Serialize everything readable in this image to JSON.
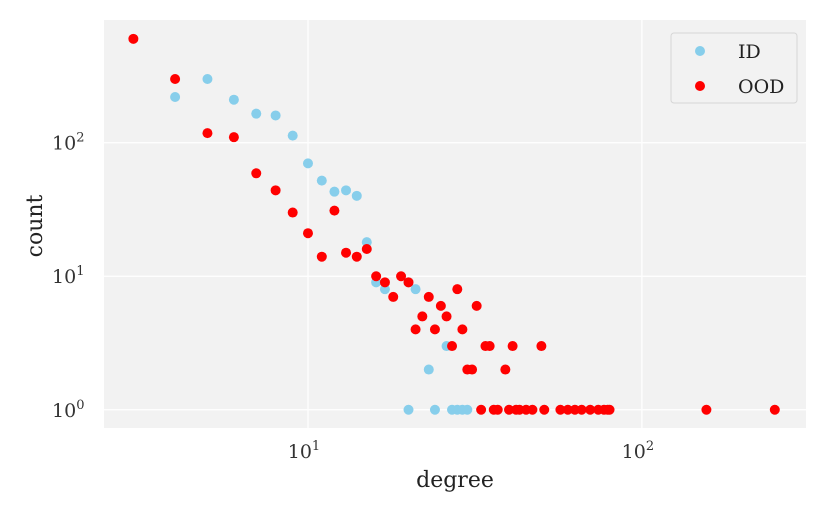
{
  "chart_data": {
    "type": "scatter",
    "xlabel": "degree",
    "ylabel": "count",
    "xscale": "log",
    "yscale": "log",
    "xlim": [
      2.45,
      310
    ],
    "ylim": [
      0.73,
      830
    ],
    "xticks": [
      {
        "value": 10,
        "base": "10",
        "exp": "1"
      },
      {
        "value": 100,
        "base": "10",
        "exp": "2"
      }
    ],
    "yticks": [
      {
        "value": 1,
        "base": "10",
        "exp": "0"
      },
      {
        "value": 10,
        "base": "10",
        "exp": "1"
      },
      {
        "value": 100,
        "base": "10",
        "exp": "2"
      }
    ],
    "grid": true,
    "legend_position": "top-right",
    "colors": {
      "ID": "#87ceeb",
      "OOD": "#ff0000",
      "background": "#f2f2f2",
      "grid": "#ffffff"
    },
    "series": [
      {
        "name": "ID",
        "color": "#87ceeb",
        "points": [
          [
            4,
            220
          ],
          [
            5,
            300
          ],
          [
            6,
            210
          ],
          [
            7,
            165
          ],
          [
            8,
            160
          ],
          [
            9,
            113
          ],
          [
            10,
            70
          ],
          [
            11,
            52
          ],
          [
            12,
            43
          ],
          [
            13,
            44
          ],
          [
            14,
            40
          ],
          [
            15,
            18
          ],
          [
            16,
            9
          ],
          [
            17,
            8
          ],
          [
            20,
            9
          ],
          [
            21,
            8
          ],
          [
            23,
            2
          ],
          [
            26,
            3
          ],
          [
            20,
            1
          ],
          [
            24,
            1
          ],
          [
            27,
            1
          ],
          [
            28,
            1
          ],
          [
            29,
            1
          ],
          [
            30,
            1
          ]
        ]
      },
      {
        "name": "OOD",
        "color": "#ff0000",
        "points": [
          [
            3,
            600
          ],
          [
            4,
            300
          ],
          [
            5,
            118
          ],
          [
            6,
            110
          ],
          [
            7,
            59
          ],
          [
            8,
            44
          ],
          [
            9,
            30
          ],
          [
            10,
            21
          ],
          [
            11,
            14
          ],
          [
            12,
            31
          ],
          [
            13,
            15
          ],
          [
            14,
            14
          ],
          [
            15,
            16
          ],
          [
            16,
            10
          ],
          [
            17,
            9
          ],
          [
            18,
            7
          ],
          [
            19,
            10
          ],
          [
            20,
            9
          ],
          [
            21,
            4
          ],
          [
            22,
            5
          ],
          [
            23,
            7
          ],
          [
            24,
            4
          ],
          [
            25,
            6
          ],
          [
            26,
            5
          ],
          [
            27,
            3
          ],
          [
            28,
            8
          ],
          [
            29,
            4
          ],
          [
            30,
            2
          ],
          [
            31,
            2
          ],
          [
            32,
            6
          ],
          [
            34,
            3
          ],
          [
            35,
            3
          ],
          [
            39,
            2
          ],
          [
            41,
            3
          ],
          [
            50,
            3
          ],
          [
            33,
            1
          ],
          [
            36,
            1
          ],
          [
            37,
            1
          ],
          [
            40,
            1
          ],
          [
            42,
            1
          ],
          [
            43,
            1
          ],
          [
            45,
            1
          ],
          [
            47,
            1
          ],
          [
            51,
            1
          ],
          [
            57,
            1
          ],
          [
            60,
            1
          ],
          [
            63,
            1
          ],
          [
            66,
            1
          ],
          [
            70,
            1
          ],
          [
            74,
            1
          ],
          [
            77,
            1
          ],
          [
            79,
            1
          ],
          [
            80,
            1
          ],
          [
            156,
            1
          ],
          [
            250,
            1
          ]
        ]
      }
    ]
  }
}
